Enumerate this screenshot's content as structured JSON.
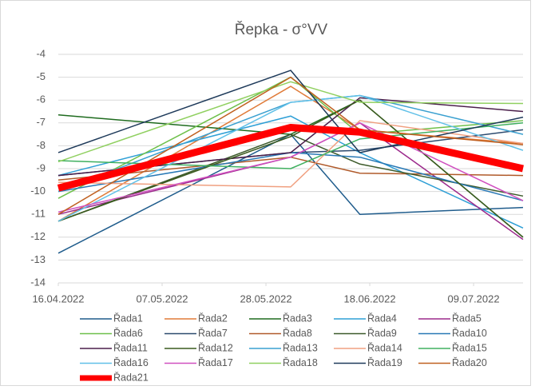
{
  "chart_data": {
    "type": "line",
    "title": "Řepka - σ°VV",
    "x": [
      "2022-04-16",
      "2022-06-02",
      "2022-06-16",
      "2022-07-19"
    ],
    "xlim": [
      "2022-04-16",
      "2022-07-19"
    ],
    "xticks": [
      {
        "value": "2022-04-16",
        "label": "16.04.2022"
      },
      {
        "value": "2022-05-07",
        "label": "07.05.2022"
      },
      {
        "value": "2022-05-28",
        "label": "28.05.2022"
      },
      {
        "value": "2022-06-18",
        "label": "18.06.2022"
      },
      {
        "value": "2022-07-09",
        "label": "09.07.2022"
      }
    ],
    "ylim": [
      -14,
      -4
    ],
    "yticks": [
      -14,
      -13,
      -12,
      -11,
      -10,
      -9,
      -8,
      -7,
      -6,
      -5,
      -4
    ],
    "grid": true,
    "legend": "bottom",
    "series": [
      {
        "name": "Řada1",
        "color": "#1f5c8c",
        "values": [
          -12.7,
          -7.5,
          -11.0,
          -10.7
        ]
      },
      {
        "name": "Řada2",
        "color": "#e07b39",
        "values": [
          -11.3,
          -5.4,
          -7.3,
          -7.9
        ]
      },
      {
        "name": "Řada3",
        "color": "#1e6b1e",
        "values": [
          -6.65,
          -7.5,
          -6.0,
          -12.0
        ]
      },
      {
        "name": "Řada4",
        "color": "#2e9fd6",
        "values": [
          -9.3,
          -6.7,
          -8.3,
          -11.6
        ]
      },
      {
        "name": "Řada5",
        "color": "#9c2a8c",
        "values": [
          -11.0,
          -8.5,
          -7.0,
          -12.1
        ]
      },
      {
        "name": "Řada6",
        "color": "#6ec04a",
        "values": [
          -10.3,
          -5.0,
          -7.5,
          -6.9
        ]
      },
      {
        "name": "Řada7",
        "color": "#2c4a6e",
        "values": [
          -9.3,
          -8.3,
          -8.2,
          -7.3
        ]
      },
      {
        "name": "Řada8",
        "color": "#b05a2a",
        "values": [
          -9.5,
          -8.5,
          -9.2,
          -9.3
        ]
      },
      {
        "name": "Řada9",
        "color": "#3c5a2a",
        "values": [
          -11.3,
          -7.5,
          -8.8,
          -10.2
        ]
      },
      {
        "name": "Řada10",
        "color": "#2878b5",
        "values": [
          -10.0,
          -8.3,
          -8.5,
          -10.4
        ]
      },
      {
        "name": "Řada11",
        "color": "#4a1e4a",
        "values": [
          -9.3,
          -8.3,
          -5.9,
          -6.5
        ]
      },
      {
        "name": "Řada12",
        "color": "#3a5a1e",
        "values": [
          -11.3,
          -7.6,
          -6.0,
          -12.0
        ]
      },
      {
        "name": "Řada13",
        "color": "#3aa0d0",
        "values": [
          -10.0,
          -6.1,
          -5.8,
          -7.5
        ]
      },
      {
        "name": "Řada14",
        "color": "#f0a080",
        "values": [
          -9.6,
          -9.8,
          -6.9,
          -7.9
        ]
      },
      {
        "name": "Řada15",
        "color": "#40b060",
        "values": [
          -8.65,
          -9.0,
          -7.7,
          -7.0
        ]
      },
      {
        "name": "Řada16",
        "color": "#60c0e8",
        "values": [
          -11.3,
          -6.1,
          -5.8,
          -8.2
        ]
      },
      {
        "name": "Řada17",
        "color": "#d050c0",
        "values": [
          -10.9,
          -8.5,
          -7.0,
          -10.4
        ]
      },
      {
        "name": "Řada18",
        "color": "#90d060",
        "values": [
          -8.7,
          -5.2,
          -6.1,
          -6.15
        ]
      },
      {
        "name": "Řada19",
        "color": "#1e3a5a",
        "values": [
          -8.3,
          -4.7,
          -8.3,
          -6.75
        ]
      },
      {
        "name": "Řada20",
        "color": "#c06020",
        "values": [
          -11.0,
          -5.0,
          -7.3,
          -7.95
        ]
      },
      {
        "name": "Řada21",
        "color": "#ff0000",
        "values": [
          -9.85,
          -7.2,
          -7.4,
          -9.0
        ]
      }
    ]
  }
}
